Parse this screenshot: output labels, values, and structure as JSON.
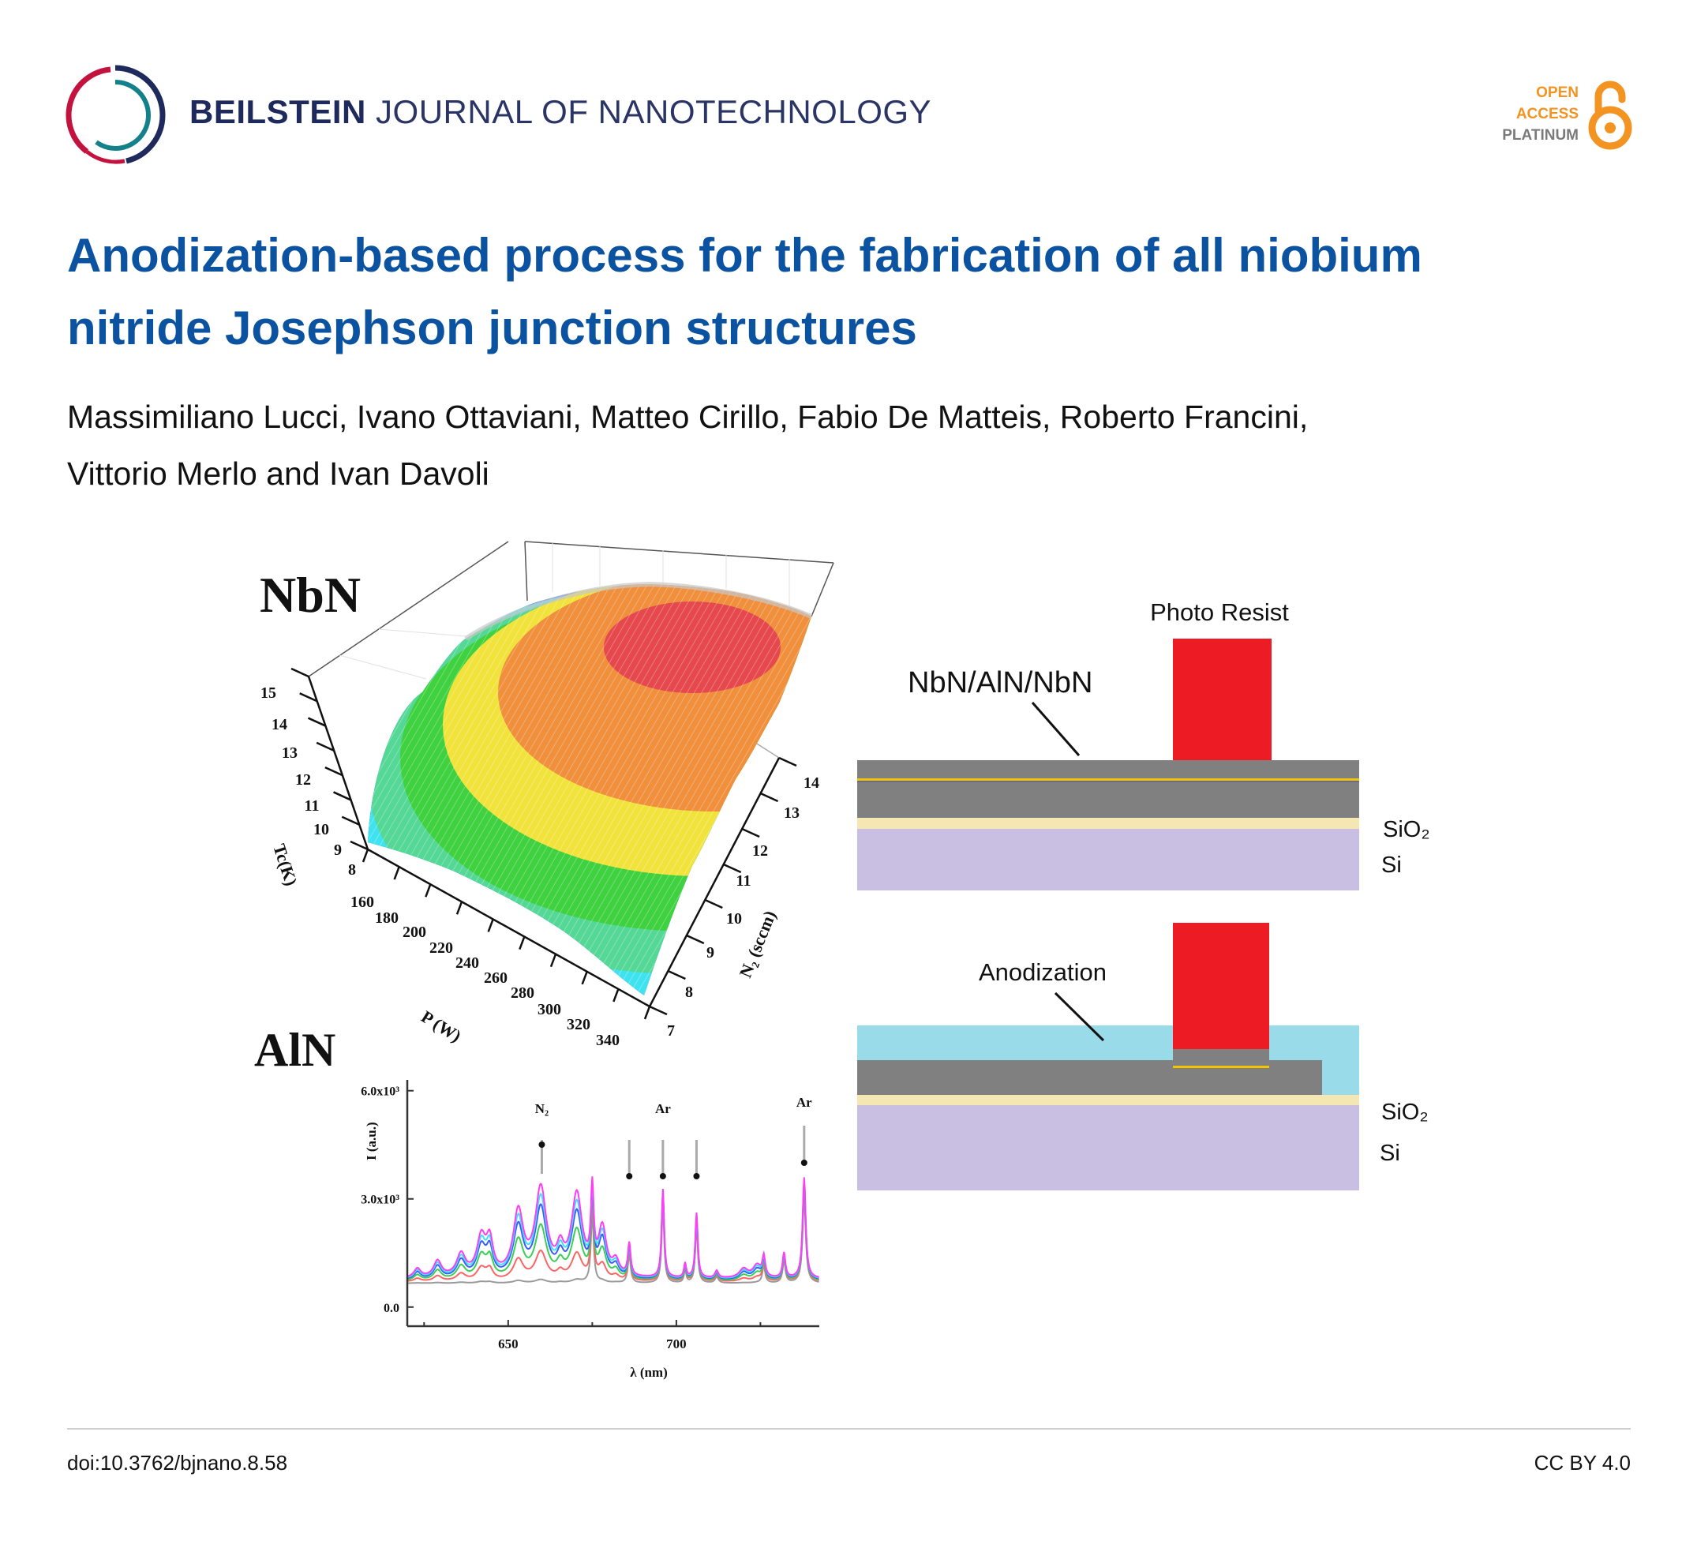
{
  "header": {
    "journal_bold": "BEILSTEIN",
    "journal_rest": "JOURNAL OF NANOTECHNOLOGY",
    "oa_line1": "OPEN",
    "oa_line2": "ACCESS",
    "oa_line3": "PLATINUM",
    "logo_icon": "beilstein-swirl-logo",
    "oa_icon": "open-lock-icon"
  },
  "article": {
    "title_line1": "Anodization-based process for the fabrication of all niobium",
    "title_line2": "nitride Josephson junction structures",
    "authors_line1": "Massimiliano Lucci, Ivano Ottaviani, Matteo Cirillo, Fabio De Matteis, Roberto Francini,",
    "authors_line2": "Vittorio Merlo and Ivan Davoli"
  },
  "figure": {
    "surface": {
      "panel_label": "NbN",
      "z_label": "Tc(K)",
      "x_label": "P (W)",
      "y_label": "N₂ (sccm)",
      "z_ticks": [
        "15",
        "14",
        "13",
        "12",
        "11",
        "10",
        "9",
        "8"
      ],
      "x_ticks": [
        "160",
        "180",
        "200",
        "220",
        "240",
        "260",
        "280",
        "300",
        "320",
        "340"
      ],
      "y_ticks": [
        "7",
        "8",
        "9",
        "10",
        "11",
        "12",
        "13",
        "14"
      ],
      "colors": [
        "#2b3cf2",
        "#4a82e6",
        "#3fe3f0",
        "#55d895",
        "#3fd13f",
        "#f1e33c",
        "#f08f3c",
        "#e5484d"
      ]
    },
    "diagram": {
      "photo_resist": "Photo Resist",
      "stack_label": "NbN/AlN/NbN",
      "anodization": "Anodization",
      "sio2": "SiO₂",
      "si": "Si",
      "colors": {
        "resist": "#ed1c24",
        "nbn": "#808080",
        "aln": "#f2c400",
        "sio2": "#f4e7b4",
        "si": "#c8bfe3",
        "anodic": "#9adbe9"
      }
    }
  },
  "chart_data": {
    "type": "line",
    "panel_label": "AlN",
    "title": "",
    "xlabel": "λ (nm)",
    "ylabel": "I (a.u.)",
    "xlim": [
      620,
      742.5
    ],
    "ylim": [
      -0.53,
      6.3
    ],
    "y_unit": "x10³",
    "x_ticks": [
      {
        "value": 650,
        "label": "650"
      },
      {
        "value": 700,
        "label": "700"
      }
    ],
    "x_minor_ticks": [
      625,
      675,
      725
    ],
    "y_ticks": [
      {
        "value": 6.0,
        "label": "6.0x10³"
      },
      {
        "value": 3.0,
        "label": "3.0x10³"
      },
      {
        "value": 0.0,
        "label": "0.0"
      }
    ],
    "annotations": [
      {
        "label": "N₂",
        "x": 660
      },
      {
        "label": "Ar",
        "x": 696
      },
      {
        "label": "Ar",
        "x": 738
      }
    ],
    "markers": [
      {
        "x": 660,
        "dir": "up"
      },
      {
        "x": 686,
        "dir": "down"
      },
      {
        "x": 696,
        "dir": "down"
      },
      {
        "x": 706,
        "dir": "down"
      },
      {
        "x": 738,
        "dir": "down"
      }
    ],
    "bands": [
      [
        623,
        0.25,
        1.2
      ],
      [
        629,
        0.45,
        1.4
      ],
      [
        636,
        0.62,
        1.6
      ],
      [
        642,
        1.05,
        1.6
      ],
      [
        644.5,
        0.9,
        1.2
      ],
      [
        653,
        1.75,
        1.8
      ],
      [
        659.7,
        2.4,
        2.0
      ],
      [
        665.5,
        0.6,
        1.2
      ],
      [
        670.4,
        2.25,
        1.9
      ],
      [
        678,
        1.3,
        1.4
      ],
      [
        682,
        0.4,
        1.2
      ],
      [
        720,
        0.25,
        1.5
      ],
      [
        724,
        0.35,
        1.5
      ]
    ],
    "lines": [
      [
        675,
        2.2,
        0.5
      ],
      [
        686,
        0.9,
        0.5
      ],
      [
        696,
        2.45,
        0.45
      ],
      [
        702.6,
        0.4,
        0.4
      ],
      [
        706,
        1.8,
        0.45
      ],
      [
        712,
        0.2,
        0.6
      ],
      [
        726,
        0.55,
        0.5
      ],
      [
        732,
        0.7,
        0.5
      ],
      [
        738,
        2.8,
        0.55
      ]
    ],
    "series": [
      {
        "name": "magenta",
        "color": "#ff3df5",
        "baseline": 0.78,
        "band_scale": 1.0
      },
      {
        "name": "cyan",
        "color": "#3fe0ff",
        "baseline": 0.76,
        "band_scale": 0.9
      },
      {
        "name": "blue",
        "color": "#3a5cff",
        "baseline": 0.74,
        "band_scale": 0.8
      },
      {
        "name": "green",
        "color": "#3ccf55",
        "baseline": 0.72,
        "band_scale": 0.6
      },
      {
        "name": "red",
        "color": "#ff6464",
        "baseline": 0.7,
        "band_scale": 0.33
      },
      {
        "name": "gray",
        "color": "#9a9a9a",
        "baseline": 0.66,
        "band_scale": 0.04
      }
    ]
  },
  "footer": {
    "doi": "doi:10.3762/bjnano.8.58",
    "license": "CC BY 4.0"
  }
}
